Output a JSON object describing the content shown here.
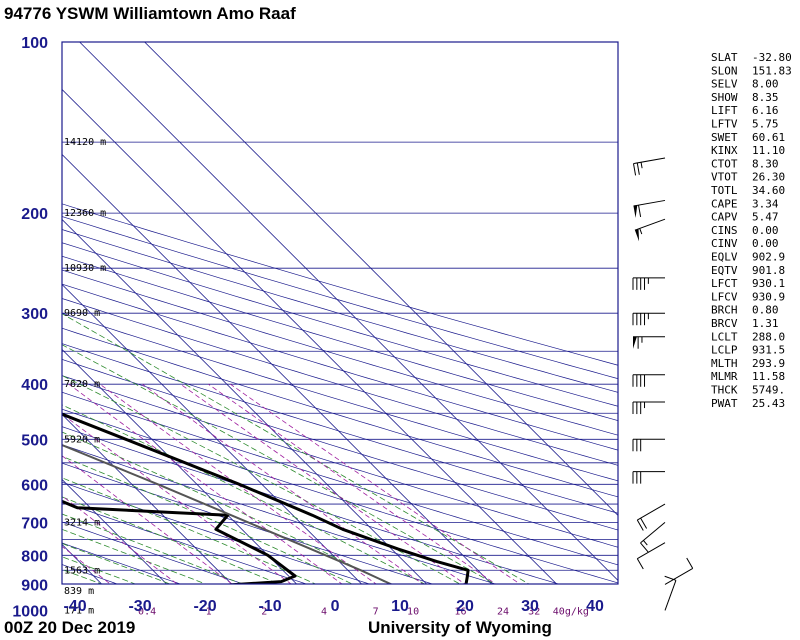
{
  "header": {
    "title": "94776 YSWM Williamtown Amo Raaf"
  },
  "footer": {
    "date": "00Z 20 Dec 2019",
    "source": "University of Wyoming"
  },
  "chart_data": {
    "type": "line",
    "subtype": "skew-t log-p sounding",
    "xlabel": "",
    "ylabel": "",
    "pressure_ticks": [
      100,
      200,
      300,
      400,
      500,
      600,
      700,
      800,
      900,
      1000
    ],
    "temperature_ticks": [
      -40,
      -30,
      -20,
      -10,
      0,
      10,
      20,
      30,
      40
    ],
    "pressure_range": [
      100,
      1050
    ],
    "temperature_range": [
      -40,
      45
    ],
    "height_labels": [
      {
        "p": 150,
        "text": "14120 m"
      },
      {
        "p": 200,
        "text": "12360 m"
      },
      {
        "p": 250,
        "text": "10930 m"
      },
      {
        "p": 300,
        "text": "9690 m"
      },
      {
        "p": 400,
        "text": "7620 m"
      },
      {
        "p": 500,
        "text": "5920 m"
      },
      {
        "p": 700,
        "text": "3214 m"
      },
      {
        "p": 850,
        "text": "1563 m"
      },
      {
        "p": 925,
        "text": "839 m"
      },
      {
        "p": 1000,
        "text": "171 m"
      }
    ],
    "mixing_ratio_labels": [
      "0.4",
      "1",
      "2",
      "4",
      "7",
      "10",
      "16",
      "24",
      "32",
      "40g/kg"
    ],
    "mixing_ratio_values": [
      0.4,
      1,
      2,
      4,
      7,
      10,
      16,
      24,
      32,
      40
    ],
    "series": [
      {
        "role": "temperature",
        "color": "#000000",
        "points": [
          {
            "p": 1005,
            "t": 26
          },
          {
            "p": 990,
            "t": 24
          },
          {
            "p": 970,
            "t": 21
          },
          {
            "p": 950,
            "t": 19
          },
          {
            "p": 930,
            "t": 18.5
          },
          {
            "p": 925,
            "t": 22
          },
          {
            "p": 900,
            "t": 26
          },
          {
            "p": 870,
            "t": 27.5
          },
          {
            "p": 850,
            "t": 28.5
          },
          {
            "p": 820,
            "t": 25
          },
          {
            "p": 780,
            "t": 21
          },
          {
            "p": 720,
            "t": 15.5
          },
          {
            "p": 680,
            "t": 13
          },
          {
            "p": 600,
            "t": 6.5
          },
          {
            "p": 500,
            "t": -4
          },
          {
            "p": 400,
            "t": -17
          },
          {
            "p": 350,
            "t": -24
          },
          {
            "p": 300,
            "t": -31
          },
          {
            "p": 250,
            "t": -40
          },
          {
            "p": 200,
            "t": -50
          },
          {
            "p": 180,
            "t": -53
          },
          {
            "p": 150,
            "t": -58
          },
          {
            "p": 130,
            "t": -56
          }
        ]
      },
      {
        "role": "dewpoint",
        "color": "#000000",
        "points": [
          {
            "p": 1005,
            "t": 17
          },
          {
            "p": 970,
            "t": 17
          },
          {
            "p": 925,
            "t": 16
          },
          {
            "p": 910,
            "t": -16
          },
          {
            "p": 890,
            "t": -2
          },
          {
            "p": 870,
            "t": 1
          },
          {
            "p": 800,
            "t": 0
          },
          {
            "p": 720,
            "t": -4
          },
          {
            "p": 680,
            "t": 0
          },
          {
            "p": 660,
            "t": -22
          },
          {
            "p": 600,
            "t": -27
          },
          {
            "p": 550,
            "t": -22
          },
          {
            "p": 500,
            "t": -25
          },
          {
            "p": 450,
            "t": -26
          },
          {
            "p": 410,
            "t": -43
          },
          {
            "p": 380,
            "t": -25
          },
          {
            "p": 365,
            "t": -34
          },
          {
            "p": 340,
            "t": -15
          },
          {
            "p": 320,
            "t": -26
          },
          {
            "p": 300,
            "t": -32
          },
          {
            "p": 275,
            "t": -33
          },
          {
            "p": 260,
            "t": -46
          },
          {
            "p": 235,
            "t": -38
          },
          {
            "p": 225,
            "t": -44
          },
          {
            "p": 210,
            "t": -43
          },
          {
            "p": 200,
            "t": -47
          },
          {
            "p": 160,
            "t": -60
          },
          {
            "p": 140,
            "t": -60
          },
          {
            "p": 130,
            "t": -58
          }
        ]
      },
      {
        "role": "parcel",
        "color": "#555555",
        "points": [
          {
            "p": 1005,
            "t": 22
          },
          {
            "p": 931,
            "t": 16
          },
          {
            "p": 850,
            "t": 12
          },
          {
            "p": 700,
            "t": 2
          },
          {
            "p": 600,
            "t": -6
          },
          {
            "p": 500,
            "t": -16
          },
          {
            "p": 400,
            "t": -30
          },
          {
            "p": 300,
            "t": -48
          },
          {
            "p": 250,
            "t": -58
          },
          {
            "p": 200,
            "t": -68
          },
          {
            "p": 150,
            "t": -78
          },
          {
            "p": 130,
            "t": -82
          }
        ]
      }
    ],
    "wind_barbs": [
      {
        "p": 160,
        "dir": 260,
        "spd": 25
      },
      {
        "p": 190,
        "dir": 260,
        "spd": 60
      },
      {
        "p": 205,
        "dir": 250,
        "spd": 55
      },
      {
        "p": 260,
        "dir": 270,
        "spd": 45
      },
      {
        "p": 300,
        "dir": 270,
        "spd": 45
      },
      {
        "p": 330,
        "dir": 270,
        "spd": 65
      },
      {
        "p": 385,
        "dir": 270,
        "spd": 40
      },
      {
        "p": 430,
        "dir": 270,
        "spd": 35
      },
      {
        "p": 500,
        "dir": 270,
        "spd": 30
      },
      {
        "p": 570,
        "dir": 270,
        "spd": 30
      },
      {
        "p": 650,
        "dir": 240,
        "spd": 20
      },
      {
        "p": 700,
        "dir": 230,
        "spd": 15
      },
      {
        "p": 760,
        "dir": 240,
        "spd": 10
      },
      {
        "p": 900,
        "dir": 60,
        "spd": 10
      },
      {
        "p": 1000,
        "dir": 20,
        "spd": 10
      }
    ],
    "indices": [
      {
        "name": "SLAT",
        "value": "-32.80"
      },
      {
        "name": "SLON",
        "value": "151.83"
      },
      {
        "name": "SELV",
        "value": "8.00"
      },
      {
        "name": "SHOW",
        "value": "8.35"
      },
      {
        "name": "LIFT",
        "value": "6.16"
      },
      {
        "name": "LFTV",
        "value": "5.75"
      },
      {
        "name": "SWET",
        "value": "60.61"
      },
      {
        "name": "KINX",
        "value": "11.10"
      },
      {
        "name": "CTOT",
        "value": "8.30"
      },
      {
        "name": "VTOT",
        "value": "26.30"
      },
      {
        "name": "TOTL",
        "value": "34.60"
      },
      {
        "name": "CAPE",
        "value": "3.34"
      },
      {
        "name": "CAPV",
        "value": "5.47"
      },
      {
        "name": "CINS",
        "value": "0.00"
      },
      {
        "name": "CINV",
        "value": "0.00"
      },
      {
        "name": "EQLV",
        "value": "902.9"
      },
      {
        "name": "EQTV",
        "value": "901.8"
      },
      {
        "name": "LFCT",
        "value": "930.1"
      },
      {
        "name": "LFCV",
        "value": "930.9"
      },
      {
        "name": "BRCH",
        "value": "0.80"
      },
      {
        "name": "BRCV",
        "value": "1.31"
      },
      {
        "name": "LCLT",
        "value": "288.0"
      },
      {
        "name": "LCLP",
        "value": "931.5"
      },
      {
        "name": "MLTH",
        "value": "293.9"
      },
      {
        "name": "MLMR",
        "value": "11.58"
      },
      {
        "name": "THCK",
        "value": "5749."
      },
      {
        "name": "PWAT",
        "value": "25.43"
      }
    ],
    "colors": {
      "isobar": "#1a1a8c",
      "isotherm": "#1a1a8c",
      "dry_adiabat": "#1a1a8c",
      "moist_adiabat": "#2e8b2e",
      "mixing_ratio": "#a020a0",
      "sounding": "#000000",
      "parcel": "#555555"
    }
  }
}
